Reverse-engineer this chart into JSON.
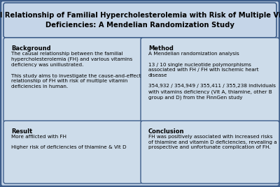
{
  "title": "Causal Relationship of Familial Hypercholesterolemia with Risk of Multiple Vitamin\nDeficiencies: A Mendelian Randomization Study",
  "title_fontsize": 7.2,
  "bg_outer": "#3d5d8a",
  "bg_inner": "#c5d5e8",
  "box_bg": "#cddcea",
  "box_border": "#3d5d8a",
  "sections": [
    {
      "label": "Background",
      "col": 0,
      "row": 0,
      "body": "The causal relationship between the familial\nhypercholesterolemia (FH) and various vitamins\ndeficiency was unillustrated.\n\nThis study aims to investigate the cause-and-effect\nrelationship of FH with risk of multiple vitamin\ndeficiencies in human."
    },
    {
      "label": "Method",
      "col": 1,
      "row": 0,
      "body": "A Mendelian randomization analysis\n\n13 / 10 single nucleotide polymorphisms\nassociated with FH / FH with ischemic heart\ndisease\n\n354,932 / 354,949 / 355,411 / 355,238 individuals\nwith vitamins deficiency (Vit A, thiamine, other B\ngroup and D) from the FinnGen study"
    },
    {
      "label": "Result",
      "col": 0,
      "row": 1,
      "body": "More afflicted with FH\n\nHigher risk of deficiencies of thiamine & Vit D"
    },
    {
      "label": "Conclusion",
      "col": 1,
      "row": 1,
      "body": "FH was positively associated with increased risks\nof thiamine and vitamin D deficiencies, revealing a\nprospective and unfortunate complication of FH."
    }
  ],
  "label_fontsize": 6.0,
  "body_fontsize": 5.2
}
